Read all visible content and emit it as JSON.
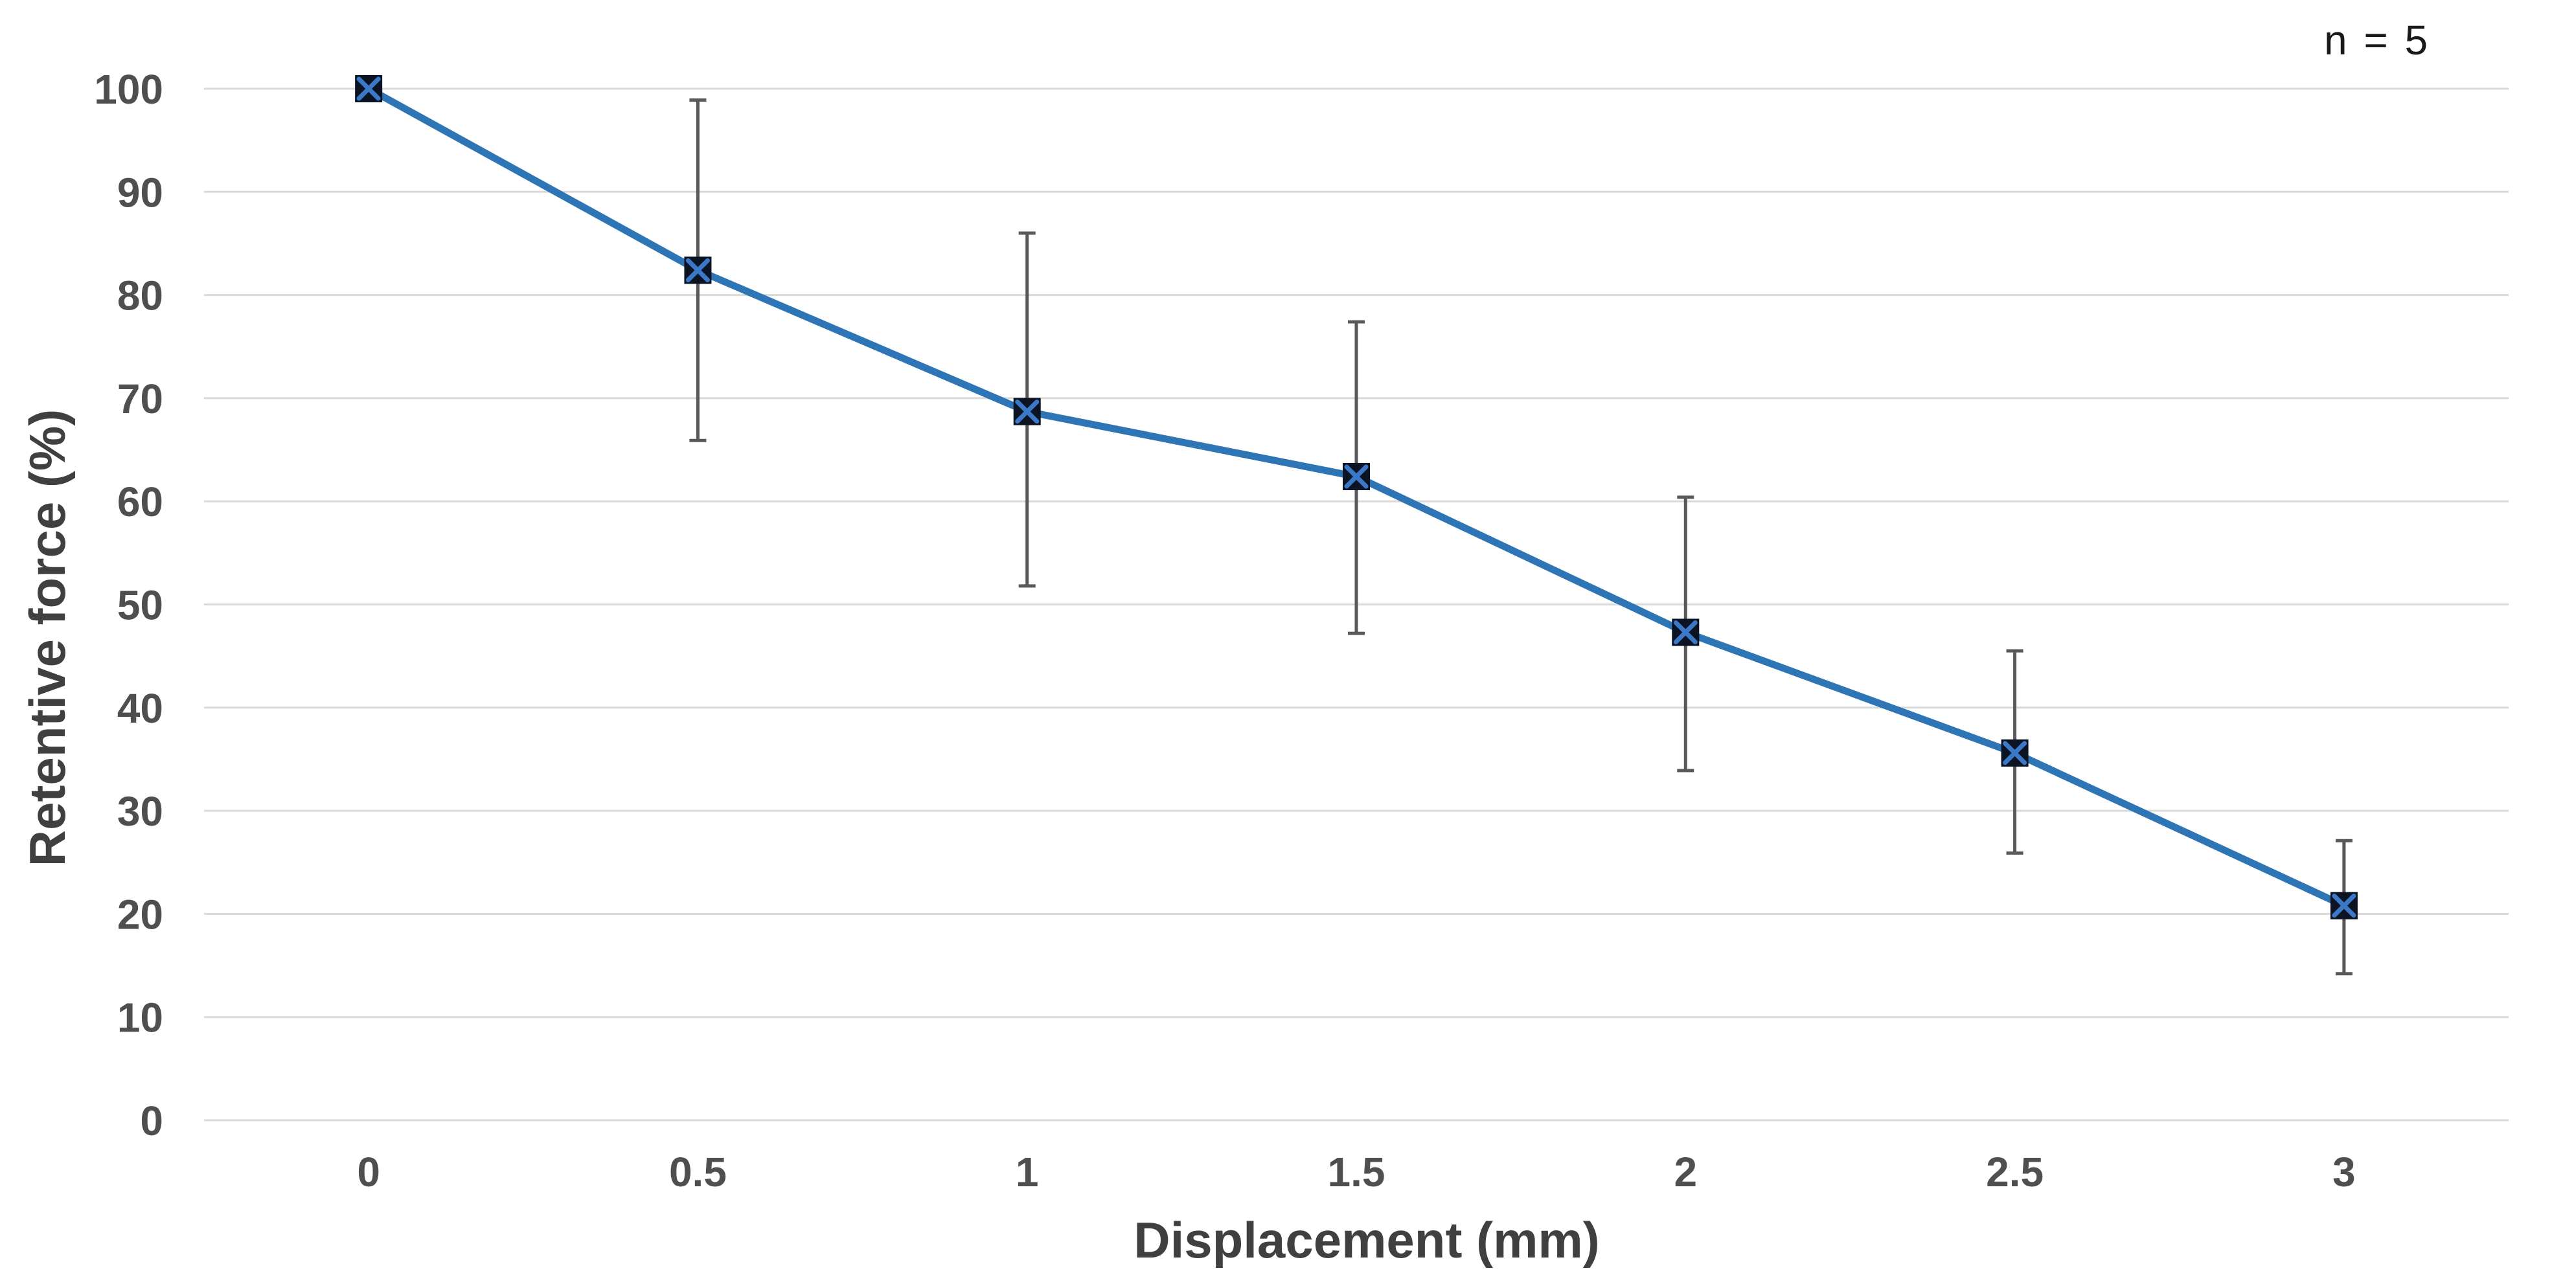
{
  "annotation": "n = 5",
  "chart_data": {
    "type": "line",
    "title": "",
    "xlabel": "Displacement (mm)",
    "ylabel": "Retentive force (%)",
    "x": [
      0,
      0.5,
      1,
      1.5,
      2,
      2.5,
      3
    ],
    "x_tick_labels": [
      "0",
      "0.5",
      "1",
      "1.5",
      "2",
      "2.5",
      "3"
    ],
    "y_ticks": [
      0,
      10,
      20,
      30,
      40,
      50,
      60,
      70,
      80,
      90,
      100
    ],
    "xlim": [
      -0.25,
      3.25
    ],
    "ylim": [
      0,
      100
    ],
    "grid": "horizontal",
    "legend": "none",
    "marker": "x-in-square",
    "series": [
      {
        "name": "Retentive force (%)",
        "values": [
          100,
          82.4,
          68.7,
          62.4,
          47.3,
          35.6,
          20.8
        ],
        "error_upper": [
          null,
          98.9,
          86.0,
          77.4,
          60.4,
          45.5,
          27.1
        ],
        "error_lower": [
          null,
          65.9,
          51.8,
          47.2,
          33.9,
          25.9,
          14.2
        ]
      }
    ],
    "colors": {
      "line": "#2E75B6",
      "marker_fill": "#0C1423",
      "marker_x_stroke": "#3B78C8",
      "error_bar": "#595959",
      "gridline": "#D9D9D9",
      "tick_label": "#4F4F4F",
      "axis_title": "#404040",
      "annotation_text": "#1A1A1A",
      "background": "#FFFFFF"
    }
  }
}
